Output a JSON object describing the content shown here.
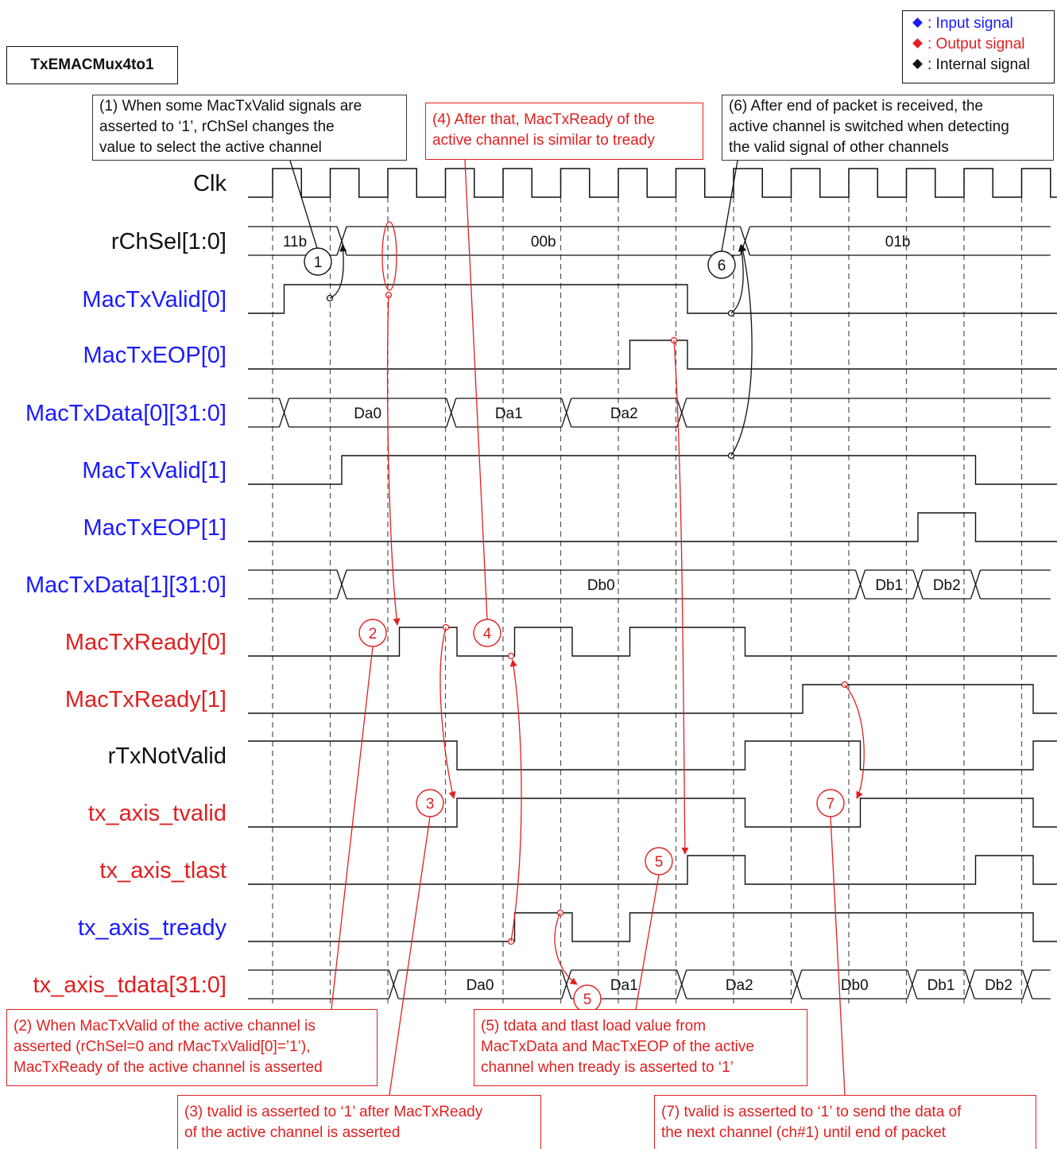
{
  "title": "TxEMACMux4to1",
  "legend": [
    {
      "label": ": Input signal",
      "color": "#1a1aff"
    },
    {
      "label": ": Output signal",
      "color": "#e02020"
    },
    {
      "label": ": Internal signal",
      "color": "#111111"
    }
  ],
  "signal_colors": {
    "input": "#1a1aff",
    "output": "#e02020",
    "internal": "#111111"
  },
  "clock": {
    "name": "Clk",
    "kind": "internal",
    "rising_edges": [
      0,
      1,
      2,
      3,
      4,
      5,
      6,
      7,
      8,
      9,
      10,
      11,
      12,
      13
    ]
  },
  "signals": [
    {
      "name": "rChSel[1:0]",
      "kind": "internal",
      "type": "bus",
      "segments": [
        {
          "start": -0.5,
          "end": 1.2,
          "label": "11b"
        },
        {
          "start": 1.2,
          "end": 8.2,
          "label": "00b"
        },
        {
          "start": 8.2,
          "end": 13.5,
          "label": "01b"
        }
      ]
    },
    {
      "name": "MacTxValid[0]",
      "kind": "input",
      "type": "digital",
      "initial": 0,
      "transitions": [
        [
          0.2,
          1
        ],
        [
          7.2,
          0
        ]
      ]
    },
    {
      "name": "MacTxEOP[0]",
      "kind": "input",
      "type": "digital",
      "initial": 0,
      "transitions": [
        [
          6.2,
          1
        ],
        [
          7.2,
          0
        ]
      ]
    },
    {
      "name": "MacTxData[0][31:0]",
      "kind": "input",
      "type": "bus",
      "segments": [
        {
          "start": -0.5,
          "end": 0.2,
          "label": ""
        },
        {
          "start": 0.2,
          "end": 3.1,
          "label": "Da0"
        },
        {
          "start": 3.1,
          "end": 5.1,
          "label": "Da1"
        },
        {
          "start": 5.1,
          "end": 7.1,
          "label": "Da2"
        },
        {
          "start": 7.1,
          "end": 13.5,
          "label": ""
        }
      ]
    },
    {
      "name": "MacTxValid[1]",
      "kind": "input",
      "type": "digital",
      "initial": 0,
      "transitions": [
        [
          1.2,
          1
        ],
        [
          12.2,
          0
        ]
      ]
    },
    {
      "name": "MacTxEOP[1]",
      "kind": "input",
      "type": "digital",
      "initial": 0,
      "transitions": [
        [
          11.2,
          1
        ],
        [
          12.2,
          0
        ]
      ]
    },
    {
      "name": "MacTxData[1][31:0]",
      "kind": "input",
      "type": "bus",
      "segments": [
        {
          "start": -0.5,
          "end": 1.2,
          "label": ""
        },
        {
          "start": 1.2,
          "end": 10.2,
          "label": "Db0"
        },
        {
          "start": 10.2,
          "end": 11.2,
          "label": "Db1"
        },
        {
          "start": 11.2,
          "end": 12.2,
          "label": "Db2"
        },
        {
          "start": 12.2,
          "end": 13.5,
          "label": ""
        }
      ]
    },
    {
      "name": "MacTxReady[0]",
      "kind": "output",
      "type": "digital",
      "initial": 0,
      "transitions": [
        [
          2.2,
          1
        ],
        [
          3.2,
          0
        ],
        [
          4.2,
          1
        ],
        [
          5.2,
          0
        ],
        [
          6.2,
          1
        ],
        [
          8.2,
          0
        ]
      ]
    },
    {
      "name": "MacTxReady[1]",
      "kind": "output",
      "type": "digital",
      "initial": 0,
      "transitions": [
        [
          9.2,
          1
        ],
        [
          13.2,
          0
        ]
      ]
    },
    {
      "name": "rTxNotValid",
      "kind": "internal",
      "type": "digital",
      "initial": 1,
      "transitions": [
        [
          3.2,
          0
        ],
        [
          8.2,
          1
        ],
        [
          10.2,
          0
        ],
        [
          13.2,
          1
        ]
      ]
    },
    {
      "name": "tx_axis_tvalid",
      "kind": "output",
      "type": "digital",
      "initial": 0,
      "transitions": [
        [
          3.2,
          1
        ],
        [
          8.2,
          0
        ],
        [
          10.2,
          1
        ],
        [
          13.2,
          0
        ]
      ]
    },
    {
      "name": "tx_axis_tlast",
      "kind": "output",
      "type": "digital",
      "initial": 0,
      "transitions": [
        [
          7.2,
          1
        ],
        [
          8.2,
          0
        ],
        [
          12.2,
          1
        ],
        [
          13.2,
          0
        ]
      ]
    },
    {
      "name": "tx_axis_tready",
      "kind": "input",
      "type": "digital",
      "initial": 0,
      "transitions": [
        [
          4.2,
          1
        ],
        [
          5.2,
          0
        ],
        [
          6.2,
          1
        ],
        [
          13.2,
          0
        ]
      ]
    },
    {
      "name": "tx_axis_tdata[31:0]",
      "kind": "output",
      "type": "bus",
      "segments": [
        {
          "start": -0.5,
          "end": 2.1,
          "label": ""
        },
        {
          "start": 2.1,
          "end": 5.1,
          "label": "Da0"
        },
        {
          "start": 5.1,
          "end": 7.1,
          "label": "Da1"
        },
        {
          "start": 7.1,
          "end": 9.1,
          "label": "Da2"
        },
        {
          "start": 9.1,
          "end": 11.1,
          "label": "Db0"
        },
        {
          "start": 11.1,
          "end": 12.1,
          "label": "Db1"
        },
        {
          "start": 12.1,
          "end": 13.1,
          "label": "Db2"
        },
        {
          "start": 13.1,
          "end": 13.5,
          "label": ""
        }
      ]
    }
  ],
  "markers": [
    {
      "label": "1",
      "color": "#111111"
    },
    {
      "label": "6",
      "color": "#111111"
    },
    {
      "label": "2",
      "color": "#e02020"
    },
    {
      "label": "3",
      "color": "#e02020"
    },
    {
      "label": "4",
      "color": "#e02020"
    },
    {
      "label": "5",
      "color": "#e02020"
    },
    {
      "label": "5",
      "color": "#e02020"
    },
    {
      "label": "7",
      "color": "#e02020"
    }
  ],
  "notes": [
    {
      "color": "#111111",
      "lines": [
        "(1) When some MacTxValid signals are",
        "asserted to ‘1’, rChSel changes the",
        "value to select the active channel"
      ]
    },
    {
      "color": "#e02020",
      "lines": [
        "(4) After that, MacTxReady of the",
        "active channel is similar to tready"
      ]
    },
    {
      "color": "#111111",
      "lines": [
        "(6) After end of packet is received, the",
        "active channel is switched when detecting",
        "the valid signal of other channels"
      ]
    },
    {
      "color": "#e02020",
      "lines": [
        "(2) When MacTxValid of the active channel is",
        "asserted (rChSel=0 and rMacTxValid[0]=’1’),",
        "MacTxReady of the active channel is asserted"
      ]
    },
    {
      "color": "#e02020",
      "lines": [
        "(5) tdata and tlast load value from",
        "MacTxData and MacTxEOP of the active",
        "channel when tready is asserted to ‘1’"
      ]
    },
    {
      "color": "#e02020",
      "lines": [
        "(3) tvalid is asserted to ‘1’ after MacTxReady",
        "of the active channel is asserted"
      ]
    },
    {
      "color": "#e02020",
      "lines": [
        "(7) tvalid is asserted to ‘1’ to send the data of",
        "the next channel (ch#1) until end of packet"
      ]
    }
  ]
}
